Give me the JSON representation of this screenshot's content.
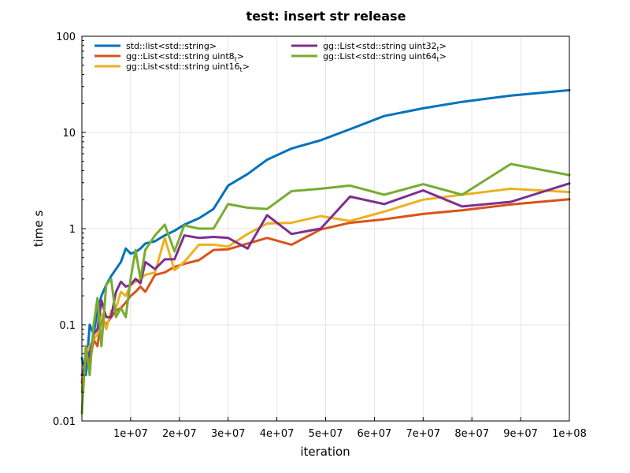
{
  "chart_data": {
    "type": "line",
    "title": "test: insert str release",
    "xlabel": "iteration",
    "ylabel": "time s",
    "yscale": "log",
    "xlim": [
      0,
      100000000
    ],
    "ylim": [
      0.01,
      100
    ],
    "grid": true,
    "legend_position": "top-left",
    "x_ticks": [
      10000000,
      20000000,
      30000000,
      40000000,
      50000000,
      60000000,
      70000000,
      80000000,
      90000000,
      100000000
    ],
    "x_tick_labels": [
      "1e+07",
      "2e+07",
      "3e+07",
      "4e+07",
      "5e+07",
      "6e+07",
      "7e+07",
      "8e+07",
      "9e+07",
      "1e+08"
    ],
    "y_ticks": [
      0.01,
      0.1,
      1,
      10,
      100
    ],
    "y_tick_labels": [
      "0.01",
      "0.1",
      "1",
      "10",
      "100"
    ],
    "series": [
      {
        "name": "std::list<std::string>",
        "legend_main": "std::list<std::string>",
        "legend_sub": "",
        "legend_tail": "",
        "color": "#0072bd",
        "points": [
          [
            0,
            0.045
          ],
          [
            800000,
            0.03
          ],
          [
            1600000,
            0.1
          ],
          [
            2400000,
            0.08
          ],
          [
            3200000,
            0.14
          ],
          [
            4000000,
            0.2
          ],
          [
            5000000,
            0.26
          ],
          [
            6000000,
            0.32
          ],
          [
            7000000,
            0.38
          ],
          [
            8000000,
            0.45
          ],
          [
            9000000,
            0.62
          ],
          [
            10000000,
            0.55
          ],
          [
            11000000,
            0.57
          ],
          [
            12000000,
            0.62
          ],
          [
            13000000,
            0.7
          ],
          [
            15000000,
            0.74
          ],
          [
            17000000,
            0.85
          ],
          [
            19000000,
            0.95
          ],
          [
            21000000,
            1.1
          ],
          [
            24000000,
            1.28
          ],
          [
            27000000,
            1.6
          ],
          [
            30000000,
            2.8
          ],
          [
            34000000,
            3.7
          ],
          [
            38000000,
            5.2
          ],
          [
            43000000,
            6.8
          ],
          [
            49000000,
            8.3
          ],
          [
            55000000,
            10.8
          ],
          [
            62000000,
            14.8
          ],
          [
            70000000,
            17.8
          ],
          [
            78000000,
            20.8
          ],
          [
            88000000,
            24.2
          ],
          [
            100000000,
            27.5
          ]
        ]
      },
      {
        "name": "gg::List<std::string uint8t>",
        "legend_main": "gg::List<std::string uint8",
        "legend_sub": "t",
        "legend_tail": ">",
        "color": "#d95319",
        "points": [
          [
            0,
            0.025
          ],
          [
            800000,
            0.05
          ],
          [
            1600000,
            0.04
          ],
          [
            2400000,
            0.07
          ],
          [
            3200000,
            0.06
          ],
          [
            4000000,
            0.12
          ],
          [
            5000000,
            0.1
          ],
          [
            6000000,
            0.12
          ],
          [
            7000000,
            0.14
          ],
          [
            8000000,
            0.15
          ],
          [
            9000000,
            0.17
          ],
          [
            10000000,
            0.2
          ],
          [
            11000000,
            0.22
          ],
          [
            12000000,
            0.25
          ],
          [
            13000000,
            0.22
          ],
          [
            15000000,
            0.33
          ],
          [
            17000000,
            0.35
          ],
          [
            19000000,
            0.4
          ],
          [
            21000000,
            0.43
          ],
          [
            24000000,
            0.47
          ],
          [
            27000000,
            0.6
          ],
          [
            30000000,
            0.61
          ],
          [
            34000000,
            0.7
          ],
          [
            38000000,
            0.8
          ],
          [
            43000000,
            0.68
          ],
          [
            49000000,
            0.98
          ],
          [
            55000000,
            1.15
          ],
          [
            62000000,
            1.25
          ],
          [
            70000000,
            1.42
          ],
          [
            78000000,
            1.55
          ],
          [
            88000000,
            1.78
          ],
          [
            100000000,
            2.02
          ]
        ]
      },
      {
        "name": "gg::List<std::string uint16t>",
        "legend_main": "gg::List<std::string uint16",
        "legend_sub": "t",
        "legend_tail": ">",
        "color": "#edb120",
        "points": [
          [
            0,
            0.02
          ],
          [
            800000,
            0.05
          ],
          [
            1600000,
            0.06
          ],
          [
            2400000,
            0.07
          ],
          [
            3200000,
            0.08
          ],
          [
            4000000,
            0.13
          ],
          [
            5000000,
            0.09
          ],
          [
            6000000,
            0.14
          ],
          [
            7000000,
            0.15
          ],
          [
            8000000,
            0.22
          ],
          [
            9000000,
            0.2
          ],
          [
            10000000,
            0.26
          ],
          [
            11000000,
            0.28
          ],
          [
            12000000,
            0.3
          ],
          [
            13000000,
            0.33
          ],
          [
            15000000,
            0.35
          ],
          [
            17000000,
            0.8
          ],
          [
            19000000,
            0.37
          ],
          [
            21000000,
            0.45
          ],
          [
            24000000,
            0.68
          ],
          [
            27000000,
            0.68
          ],
          [
            30000000,
            0.65
          ],
          [
            34000000,
            0.88
          ],
          [
            38000000,
            1.13
          ],
          [
            43000000,
            1.15
          ],
          [
            49000000,
            1.35
          ],
          [
            55000000,
            1.2
          ],
          [
            62000000,
            1.5
          ],
          [
            70000000,
            2.0
          ],
          [
            78000000,
            2.25
          ],
          [
            88000000,
            2.6
          ],
          [
            100000000,
            2.4
          ]
        ]
      },
      {
        "name": "gg::List<std::string uint32t>",
        "legend_main": "gg::List<std::string uint32",
        "legend_sub": "t",
        "legend_tail": ">",
        "color": "#7e2f8e",
        "points": [
          [
            0,
            0.03
          ],
          [
            800000,
            0.04
          ],
          [
            1600000,
            0.05
          ],
          [
            2400000,
            0.08
          ],
          [
            3200000,
            0.09
          ],
          [
            4000000,
            0.18
          ],
          [
            5000000,
            0.12
          ],
          [
            6000000,
            0.12
          ],
          [
            7000000,
            0.22
          ],
          [
            8000000,
            0.28
          ],
          [
            9000000,
            0.25
          ],
          [
            10000000,
            0.26
          ],
          [
            11000000,
            0.3
          ],
          [
            12000000,
            0.27
          ],
          [
            13000000,
            0.45
          ],
          [
            15000000,
            0.38
          ],
          [
            17000000,
            0.48
          ],
          [
            19000000,
            0.48
          ],
          [
            21000000,
            0.85
          ],
          [
            24000000,
            0.8
          ],
          [
            27000000,
            0.82
          ],
          [
            30000000,
            0.8
          ],
          [
            34000000,
            0.62
          ],
          [
            38000000,
            1.38
          ],
          [
            43000000,
            0.88
          ],
          [
            49000000,
            1.0
          ],
          [
            55000000,
            2.15
          ],
          [
            62000000,
            1.8
          ],
          [
            70000000,
            2.5
          ],
          [
            78000000,
            1.7
          ],
          [
            88000000,
            1.9
          ],
          [
            100000000,
            2.95
          ]
        ]
      },
      {
        "name": "gg::List<std::string uint64t>",
        "legend_main": "gg::List<std::string uint64",
        "legend_sub": "t",
        "legend_tail": ">",
        "color": "#77ac30",
        "points": [
          [
            0,
            0.012
          ],
          [
            800000,
            0.06
          ],
          [
            1600000,
            0.03
          ],
          [
            2400000,
            0.1
          ],
          [
            3200000,
            0.19
          ],
          [
            4000000,
            0.06
          ],
          [
            5000000,
            0.26
          ],
          [
            6000000,
            0.3
          ],
          [
            7000000,
            0.12
          ],
          [
            8000000,
            0.15
          ],
          [
            9000000,
            0.12
          ],
          [
            10000000,
            0.3
          ],
          [
            11000000,
            0.6
          ],
          [
            12000000,
            0.3
          ],
          [
            13000000,
            0.6
          ],
          [
            15000000,
            0.85
          ],
          [
            17000000,
            1.1
          ],
          [
            19000000,
            0.58
          ],
          [
            21000000,
            1.08
          ],
          [
            24000000,
            1.0
          ],
          [
            27000000,
            1.0
          ],
          [
            30000000,
            1.8
          ],
          [
            34000000,
            1.65
          ],
          [
            38000000,
            1.6
          ],
          [
            43000000,
            2.45
          ],
          [
            49000000,
            2.6
          ],
          [
            55000000,
            2.8
          ],
          [
            62000000,
            2.25
          ],
          [
            70000000,
            2.9
          ],
          [
            78000000,
            2.25
          ],
          [
            88000000,
            4.7
          ],
          [
            100000000,
            3.6
          ]
        ]
      }
    ]
  }
}
